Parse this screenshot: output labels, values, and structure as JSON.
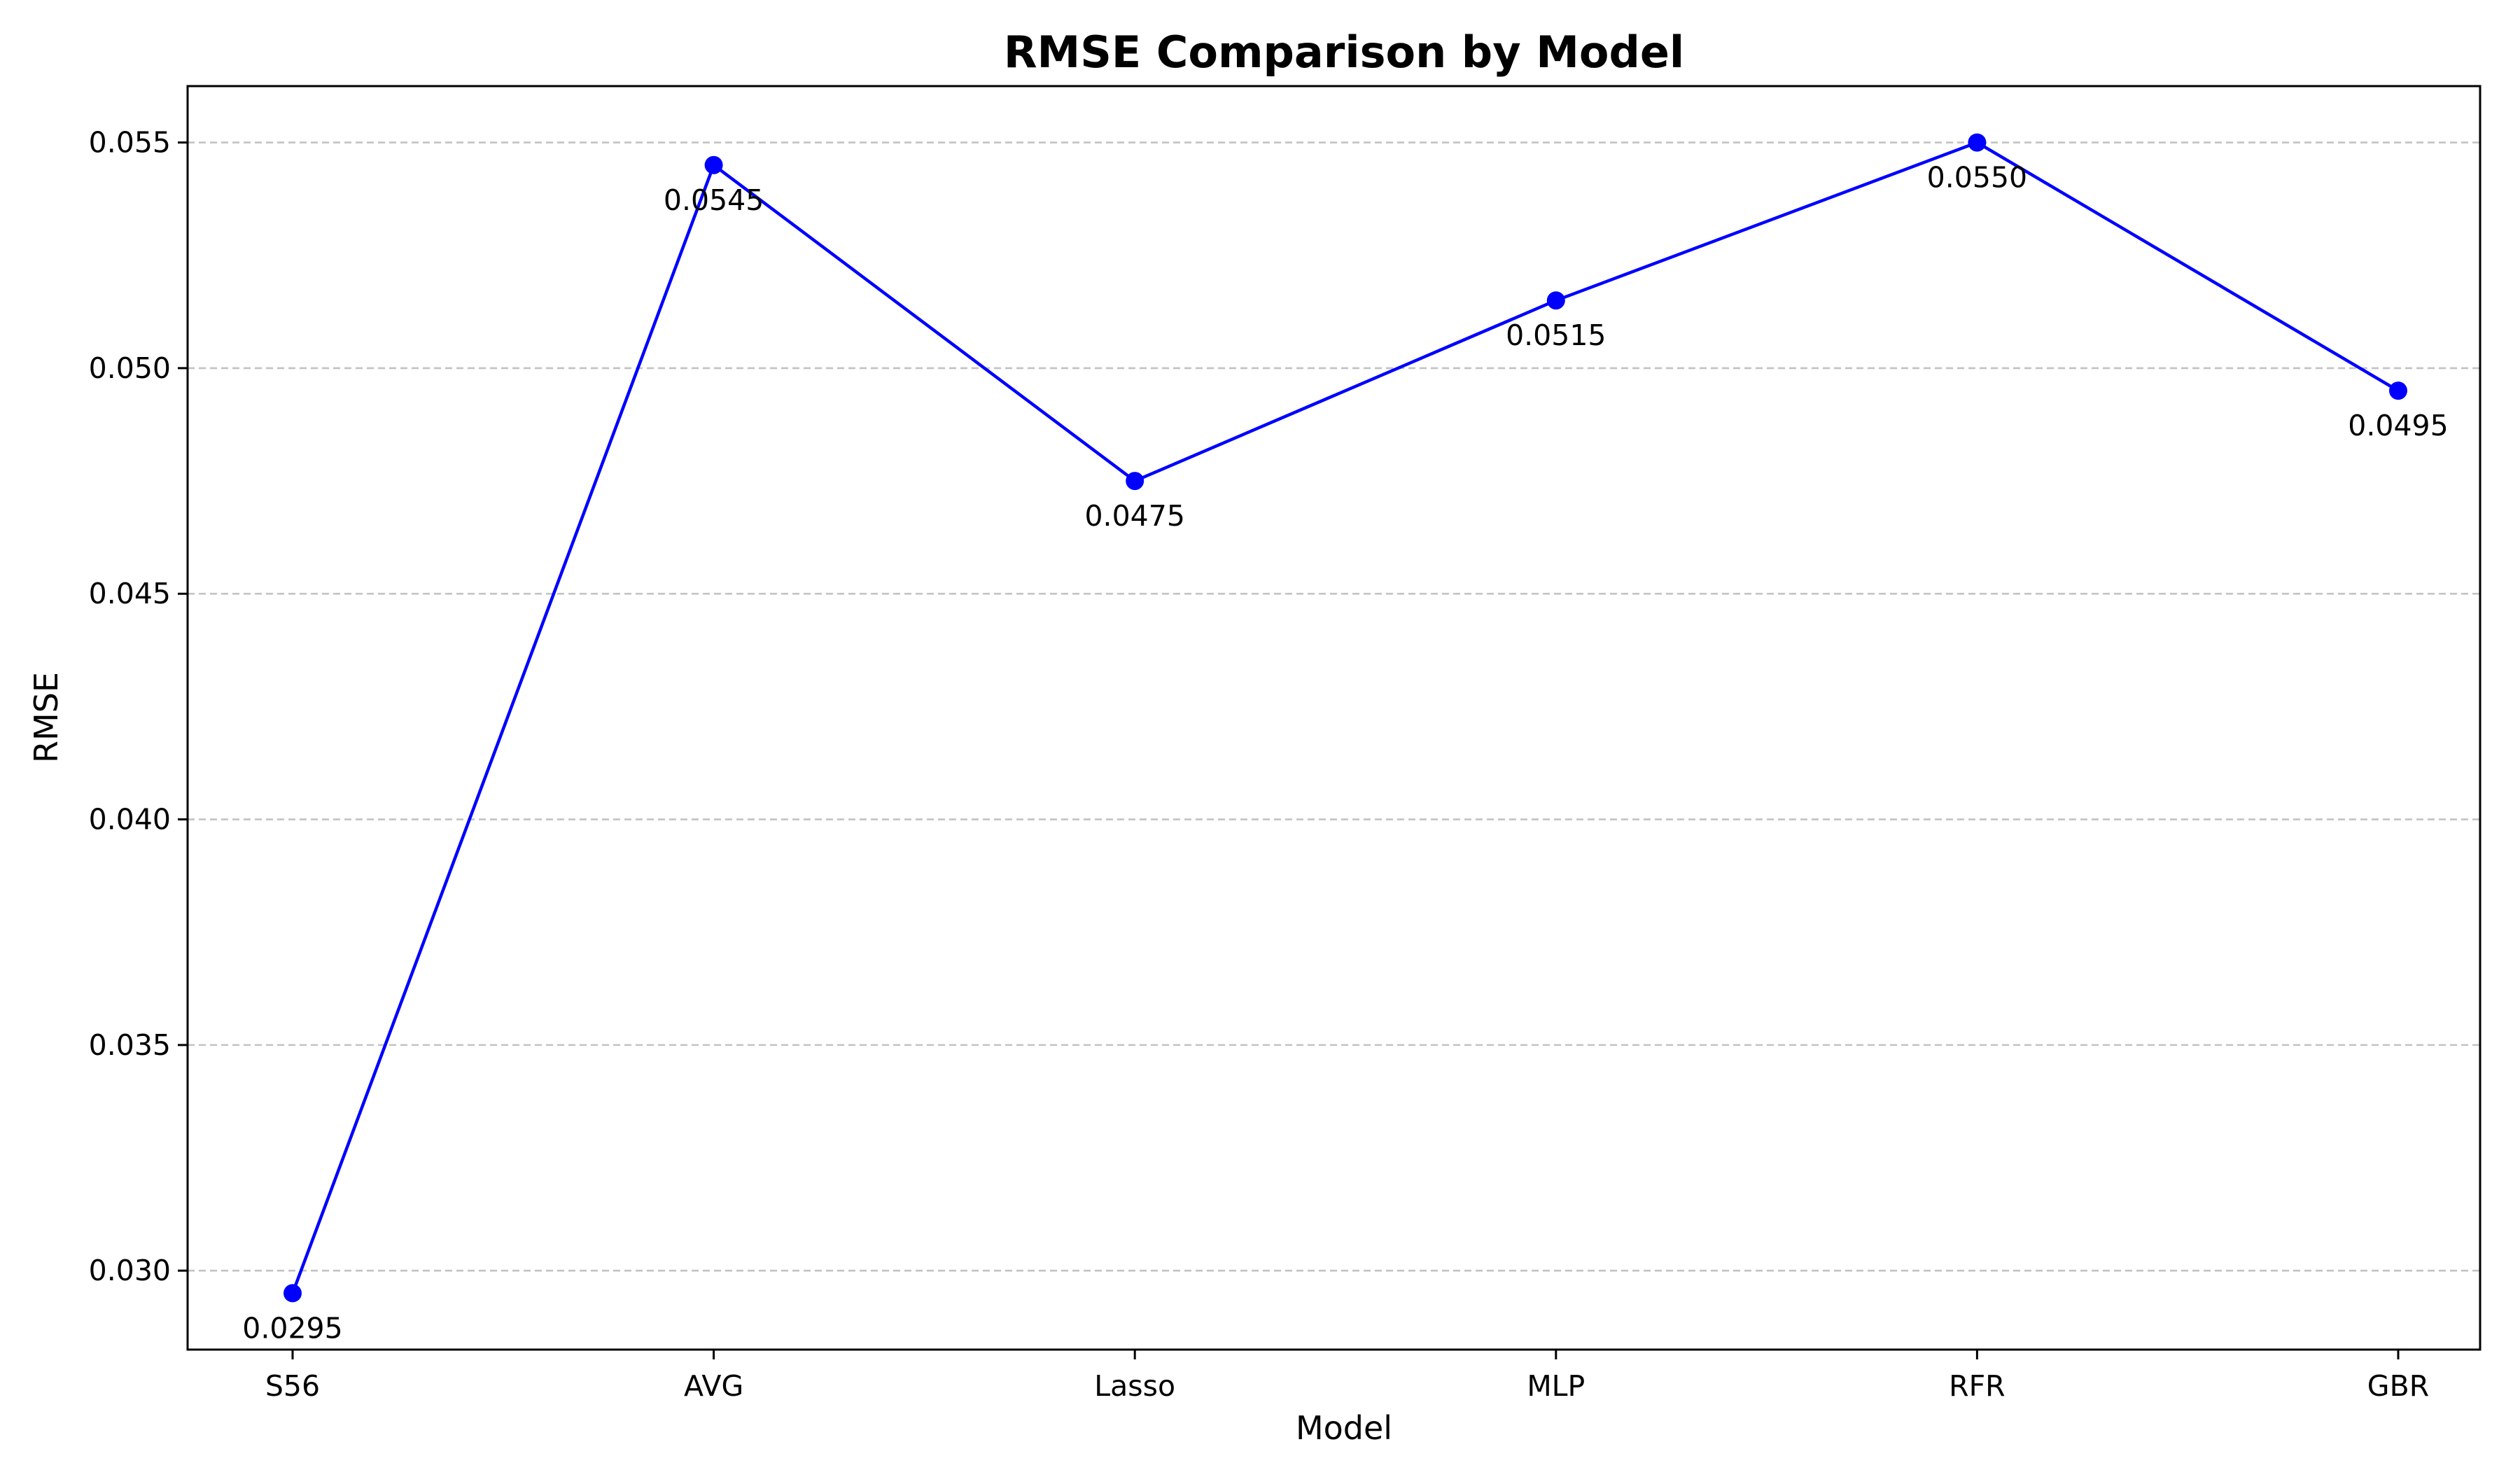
{
  "chart_data": {
    "type": "line",
    "title": "RMSE Comparison by Model",
    "xlabel": "Model",
    "ylabel": "RMSE",
    "categories": [
      "S56",
      "AVG",
      "Lasso",
      "MLP",
      "RFR",
      "GBR"
    ],
    "series": [
      {
        "values": [
          0.0295,
          0.0545,
          0.0475,
          0.0515,
          0.055,
          0.0495
        ],
        "data_labels": [
          "0.0295",
          "0.0545",
          "0.0475",
          "0.0515",
          "0.0550",
          "0.0495"
        ],
        "color": "#0000ff",
        "marker": "circle"
      }
    ],
    "yticks": [
      0.03,
      0.035,
      0.04,
      0.045,
      0.05,
      0.055
    ],
    "ytick_labels": [
      "0.030",
      "0.035",
      "0.040",
      "0.045",
      "0.050",
      "0.055"
    ],
    "ylim": [
      0.02825,
      0.05625
    ],
    "grid": "y-dashed",
    "legend": "none"
  }
}
